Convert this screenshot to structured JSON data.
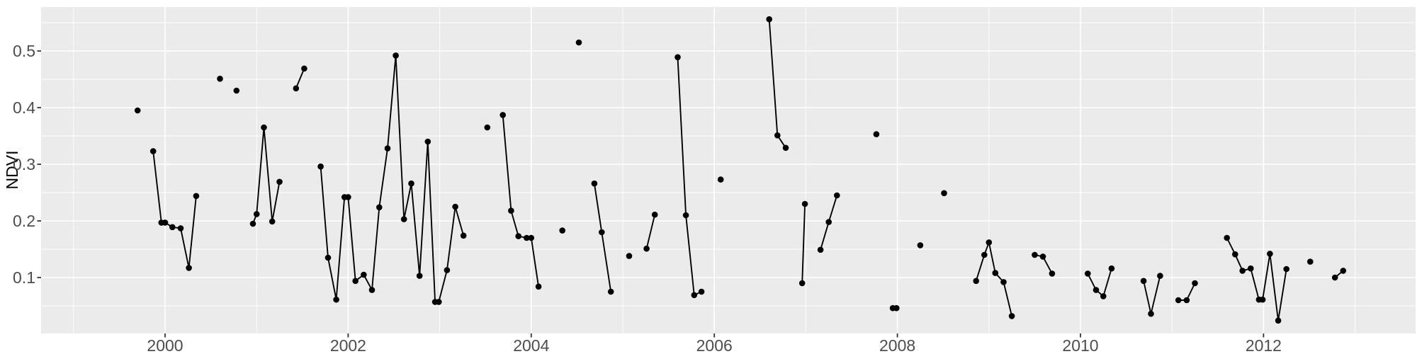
{
  "chart_data": {
    "type": "line",
    "title": "",
    "xlabel": "",
    "ylabel": "NDVI",
    "x_ticks": [
      2000,
      2002,
      2004,
      2006,
      2008,
      2010,
      2012
    ],
    "x_tick_labels": [
      "2000",
      "2002",
      "2004",
      "2006",
      "2008",
      "2010",
      "2012"
    ],
    "x_minor_ticks": [
      1999,
      2001,
      2003,
      2005,
      2007,
      2009,
      2011,
      2013
    ],
    "y_ticks": [
      0.1,
      0.2,
      0.3,
      0.4,
      0.5
    ],
    "y_tick_labels": [
      "0.1",
      "0.2",
      "0.3",
      "0.4",
      "0.5"
    ],
    "y_minor_ticks": [
      0.05,
      0.15,
      0.25,
      0.35,
      0.45,
      0.55
    ],
    "xlim": [
      1998.64,
      2013.66
    ],
    "ylim": [
      0.0,
      0.578
    ],
    "grid": true,
    "legend_position": "none",
    "style": {
      "panel_background": "#EBEBEB",
      "grid_color": "#FFFFFF",
      "point_color": "#000000",
      "line_color": "#000000",
      "tick_label_color": "#4D4D4D",
      "axis_title_color": "#000000",
      "tick_color": "#333333",
      "outer_background": "#FFFFFF"
    },
    "series_name": "NDVI",
    "segments": [
      [
        [
          1999.7,
          0.395
        ]
      ],
      [
        [
          1999.87,
          0.323
        ],
        [
          1999.96,
          0.197
        ],
        [
          2000.0,
          0.197
        ],
        [
          2000.08,
          0.189
        ],
        [
          2000.17,
          0.187
        ],
        [
          2000.26,
          0.117
        ],
        [
          2000.34,
          0.244
        ]
      ],
      [
        [
          2000.6,
          0.451
        ]
      ],
      [
        [
          2000.78,
          0.43
        ]
      ],
      [
        [
          2000.96,
          0.195
        ],
        [
          2001.0,
          0.212
        ],
        [
          2001.08,
          0.365
        ],
        [
          2001.17,
          0.199
        ],
        [
          2001.25,
          0.269
        ]
      ],
      [
        [
          2001.43,
          0.434
        ],
        [
          2001.52,
          0.469
        ]
      ],
      [
        [
          2001.7,
          0.296
        ],
        [
          2001.78,
          0.135
        ],
        [
          2001.87,
          0.061
        ],
        [
          2001.96,
          0.242
        ],
        [
          2002.0,
          0.242
        ],
        [
          2002.08,
          0.094
        ],
        [
          2002.17,
          0.105
        ],
        [
          2002.26,
          0.078
        ],
        [
          2002.34,
          0.224
        ],
        [
          2002.43,
          0.328
        ],
        [
          2002.52,
          0.492
        ],
        [
          2002.61,
          0.203
        ],
        [
          2002.69,
          0.266
        ],
        [
          2002.78,
          0.103
        ],
        [
          2002.87,
          0.34
        ],
        [
          2002.95,
          0.057
        ],
        [
          2002.99,
          0.057
        ],
        [
          2003.08,
          0.113
        ],
        [
          2003.17,
          0.225
        ],
        [
          2003.26,
          0.174
        ]
      ],
      [
        [
          2003.52,
          0.365
        ]
      ],
      [
        [
          2003.69,
          0.387
        ],
        [
          2003.78,
          0.218
        ],
        [
          2003.86,
          0.173
        ],
        [
          2003.95,
          0.17
        ],
        [
          2004.0,
          0.17
        ],
        [
          2004.08,
          0.084
        ]
      ],
      [
        [
          2004.34,
          0.183
        ]
      ],
      [
        [
          2004.52,
          0.515
        ]
      ],
      [
        [
          2004.69,
          0.266
        ],
        [
          2004.77,
          0.18
        ],
        [
          2004.87,
          0.075
        ]
      ],
      [
        [
          2005.07,
          0.138
        ]
      ],
      [
        [
          2005.26,
          0.151
        ],
        [
          2005.35,
          0.211
        ]
      ],
      [
        [
          2005.6,
          0.489
        ],
        [
          2005.69,
          0.21
        ],
        [
          2005.78,
          0.069
        ],
        [
          2005.86,
          0.075
        ]
      ],
      [
        [
          2006.07,
          0.273
        ]
      ],
      [
        [
          2006.6,
          0.556
        ],
        [
          2006.69,
          0.351
        ],
        [
          2006.78,
          0.329
        ]
      ],
      [
        [
          2006.96,
          0.09
        ],
        [
          2006.99,
          0.23
        ]
      ],
      [
        [
          2007.16,
          0.149
        ],
        [
          2007.25,
          0.198
        ],
        [
          2007.34,
          0.245
        ]
      ],
      [
        [
          2007.77,
          0.353
        ]
      ],
      [
        [
          2007.95,
          0.046
        ],
        [
          2007.99,
          0.046
        ]
      ],
      [
        [
          2008.25,
          0.157
        ]
      ],
      [
        [
          2008.51,
          0.249
        ]
      ],
      [
        [
          2008.86,
          0.094
        ],
        [
          2008.95,
          0.14
        ],
        [
          2009.0,
          0.162
        ],
        [
          2009.07,
          0.108
        ],
        [
          2009.16,
          0.092
        ],
        [
          2009.25,
          0.032
        ]
      ],
      [
        [
          2009.5,
          0.14
        ],
        [
          2009.59,
          0.137
        ],
        [
          2009.69,
          0.107
        ]
      ],
      [
        [
          2010.08,
          0.107
        ],
        [
          2010.17,
          0.078
        ],
        [
          2010.25,
          0.067
        ],
        [
          2010.34,
          0.116
        ]
      ],
      [
        [
          2010.69,
          0.094
        ],
        [
          2010.77,
          0.036
        ],
        [
          2010.87,
          0.103
        ]
      ],
      [
        [
          2011.07,
          0.06
        ],
        [
          2011.16,
          0.06
        ],
        [
          2011.25,
          0.09
        ]
      ],
      [
        [
          2011.6,
          0.17
        ],
        [
          2011.69,
          0.141
        ],
        [
          2011.77,
          0.112
        ],
        [
          2011.86,
          0.116
        ],
        [
          2011.95,
          0.061
        ],
        [
          2011.99,
          0.061
        ],
        [
          2012.07,
          0.142
        ],
        [
          2012.16,
          0.024
        ],
        [
          2012.25,
          0.115
        ]
      ],
      [
        [
          2012.51,
          0.128
        ]
      ],
      [
        [
          2012.78,
          0.1
        ],
        [
          2012.87,
          0.112
        ]
      ]
    ]
  }
}
